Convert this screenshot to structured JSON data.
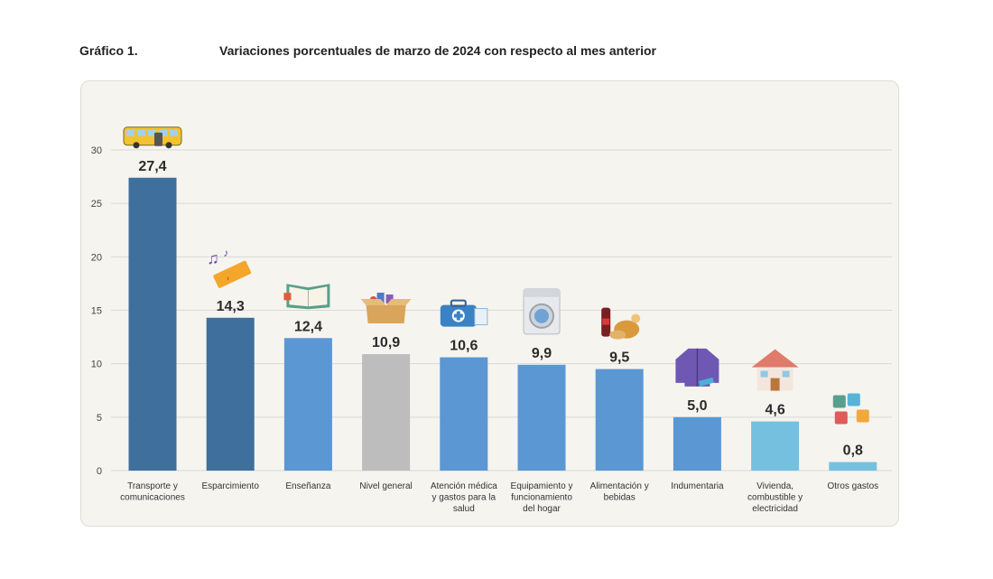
{
  "header": {
    "figure_label": "Gráfico 1.",
    "title": "Variaciones porcentuales de marzo de 2024 con respecto al mes anterior"
  },
  "chart_data": {
    "type": "bar",
    "title": "Variaciones porcentuales de marzo de 2024 con respecto al mes anterior",
    "xlabel": "",
    "ylabel": "",
    "ylim": [
      0,
      30
    ],
    "yticks": [
      "0",
      "5",
      "10",
      "15",
      "20",
      "25",
      "30"
    ],
    "grid": true,
    "categories": [
      [
        "Transporte y",
        "comunicaciones"
      ],
      [
        "Esparcimiento"
      ],
      [
        "Enseñanza"
      ],
      [
        "Nivel general"
      ],
      [
        "Atención médica",
        "y gastos para la",
        "salud"
      ],
      [
        "Equipamiento y",
        "funcionamiento",
        "del hogar"
      ],
      [
        "Alimentación y",
        "bebidas"
      ],
      [
        "Indumentaria"
      ],
      [
        "Vivienda,",
        "combustible y",
        "electricidad"
      ],
      [
        "Otros gastos"
      ]
    ],
    "values": [
      27.4,
      14.3,
      12.4,
      10.9,
      10.6,
      9.9,
      9.5,
      5.0,
      4.6,
      0.8
    ],
    "value_labels": [
      "27,4",
      "14,3",
      "12,4",
      "10,9",
      "10,6",
      "9,9",
      "9,5",
      "5,0",
      "4,6",
      "0,8"
    ],
    "colors": [
      "#3f6f9c",
      "#3f6f9c",
      "#5b97d3",
      "#bdbdbd",
      "#5b97d3",
      "#5b97d3",
      "#5b97d3",
      "#5b97d3",
      "#76c0df",
      "#76c0df"
    ],
    "icons": [
      "bus-icon",
      "ticket-music-icon",
      "book-icon",
      "shopping-box-icon",
      "first-aid-kit-icon",
      "washing-machine-icon",
      "food-drink-icon",
      "jacket-icon",
      "house-icon",
      "puzzle-icon"
    ]
  }
}
